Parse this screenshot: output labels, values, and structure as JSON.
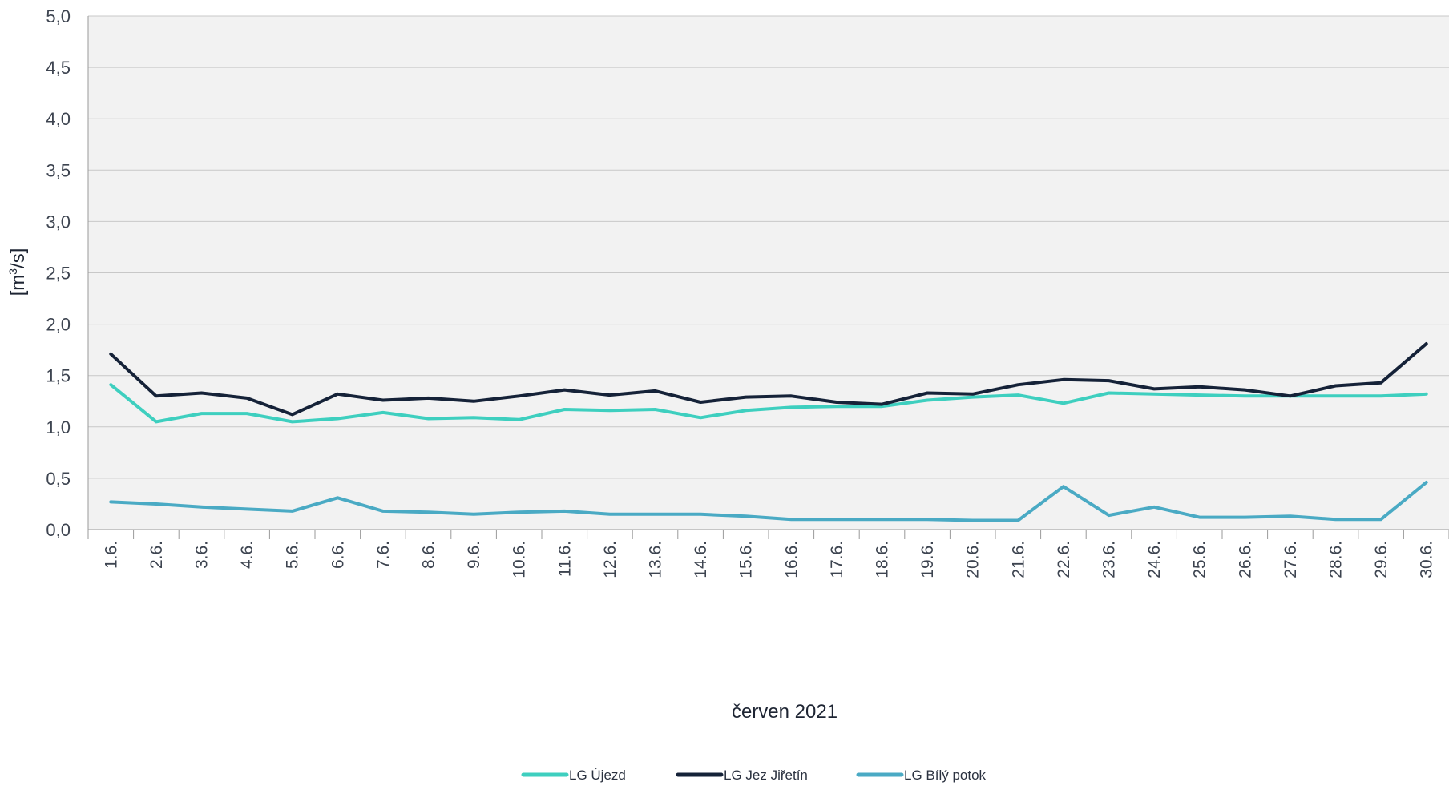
{
  "chart_data": {
    "type": "line",
    "xlabel": "červen 2021",
    "ylabel_base": "[m",
    "ylabel_sup": "3",
    "ylabel_tail": "/s]",
    "ylim": [
      0,
      5
    ],
    "yticks": [
      "0,0",
      "0,5",
      "1,0",
      "1,5",
      "2,0",
      "2,5",
      "3,0",
      "3,5",
      "4,0",
      "4,5",
      "5,0"
    ],
    "ytick_values": [
      0,
      0.5,
      1,
      1.5,
      2,
      2.5,
      3,
      3.5,
      4,
      4.5,
      5
    ],
    "grid": true,
    "legend_position": "bottom",
    "categories": [
      "1.6.",
      "2.6.",
      "3.6.",
      "4.6.",
      "5.6.",
      "6.6.",
      "7.6.",
      "8.6.",
      "9.6.",
      "10.6.",
      "11.6.",
      "12.6.",
      "13.6.",
      "14.6.",
      "15.6.",
      "16.6.",
      "17.6.",
      "18.6.",
      "19.6.",
      "20.6.",
      "21.6.",
      "22.6.",
      "23.6.",
      "24.6.",
      "25.6.",
      "26.6.",
      "27.6.",
      "28.6.",
      "29.6.",
      "30.6."
    ],
    "series": [
      {
        "name": "LG Újezd",
        "color": "#3ecfbf",
        "values": [
          1.41,
          1.05,
          1.13,
          1.13,
          1.05,
          1.08,
          1.14,
          1.08,
          1.09,
          1.07,
          1.17,
          1.16,
          1.17,
          1.09,
          1.16,
          1.19,
          1.2,
          1.2,
          1.26,
          1.29,
          1.31,
          1.23,
          1.33,
          1.32,
          1.31,
          1.3,
          1.3,
          1.3,
          1.3,
          1.32
        ]
      },
      {
        "name": "LG Jez Jiřetín",
        "color": "#152238",
        "values": [
          1.71,
          1.3,
          1.33,
          1.28,
          1.12,
          1.32,
          1.26,
          1.28,
          1.25,
          1.3,
          1.36,
          1.31,
          1.35,
          1.24,
          1.29,
          1.3,
          1.24,
          1.22,
          1.33,
          1.32,
          1.41,
          1.46,
          1.45,
          1.37,
          1.39,
          1.36,
          1.3,
          1.4,
          1.43,
          1.81
        ]
      },
      {
        "name": "LG Bílý potok",
        "color": "#4aaac4",
        "values": [
          0.27,
          0.25,
          0.22,
          0.2,
          0.18,
          0.31,
          0.18,
          0.17,
          0.15,
          0.17,
          0.18,
          0.15,
          0.15,
          0.15,
          0.13,
          0.1,
          0.1,
          0.1,
          0.1,
          0.09,
          0.09,
          0.42,
          0.14,
          0.22,
          0.12,
          0.12,
          0.13,
          0.1,
          0.1,
          0.46
        ]
      }
    ]
  }
}
